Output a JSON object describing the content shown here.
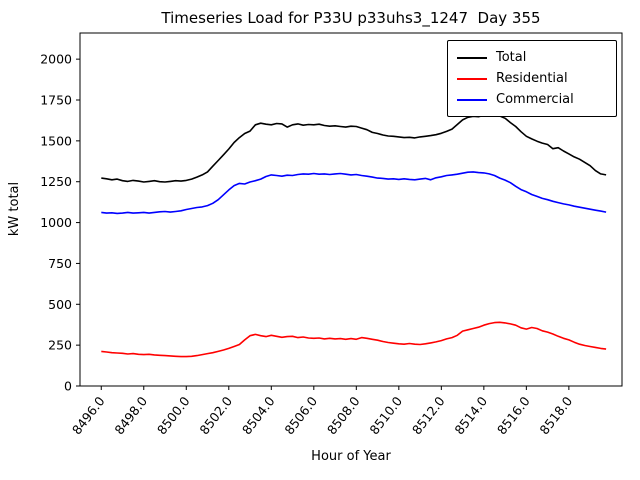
{
  "chart_data": {
    "type": "line",
    "title": "Timeseries Load for P33U p33uhs3_1247  Day 355",
    "xlabel": "Hour of Year",
    "ylabel": "kW total",
    "x_start": 8496.0,
    "x_step": 0.25,
    "xlim": [
      8495.0,
      8520.5
    ],
    "ylim": [
      0,
      2160
    ],
    "grid": false,
    "legend_position": "upper right",
    "xticks": [
      8496,
      8498,
      8500,
      8502,
      8504,
      8506,
      8508,
      8510,
      8512,
      8514,
      8516,
      8518
    ],
    "xtick_labels": [
      "8496.0",
      "8498.0",
      "8500.0",
      "8502.0",
      "8504.0",
      "8506.0",
      "8508.0",
      "8510.0",
      "8512.0",
      "8514.0",
      "8516.0",
      "8518.0"
    ],
    "yticks": [
      0,
      250,
      500,
      750,
      1000,
      1250,
      1500,
      1750,
      2000
    ],
    "ytick_labels": [
      "0",
      "250",
      "500",
      "750",
      "1000",
      "1250",
      "1500",
      "1750",
      "2000"
    ],
    "series": [
      {
        "name": "Total",
        "color": "#000000",
        "values": [
          1272,
          1268,
          1262,
          1266,
          1256,
          1252,
          1258,
          1254,
          1248,
          1252,
          1256,
          1250,
          1248,
          1252,
          1256,
          1254,
          1258,
          1266,
          1278,
          1292,
          1310,
          1345,
          1380,
          1415,
          1450,
          1490,
          1520,
          1545,
          1560,
          1598,
          1608,
          1602,
          1598,
          1606,
          1604,
          1584,
          1598,
          1604,
          1596,
          1600,
          1598,
          1602,
          1594,
          1590,
          1592,
          1588,
          1584,
          1590,
          1588,
          1578,
          1568,
          1552,
          1545,
          1536,
          1530,
          1528,
          1524,
          1520,
          1522,
          1518,
          1524,
          1528,
          1532,
          1538,
          1546,
          1558,
          1572,
          1600,
          1628,
          1644,
          1650,
          1648,
          1656,
          1670,
          1664,
          1652,
          1638,
          1612,
          1588,
          1556,
          1528,
          1512,
          1498,
          1486,
          1478,
          1452,
          1458,
          1438,
          1420,
          1402,
          1388,
          1368,
          1348,
          1318,
          1298,
          1292
        ]
      },
      {
        "name": "Residential",
        "color": "#ff0000",
        "values": [
          212,
          208,
          204,
          202,
          200,
          196,
          198,
          194,
          192,
          194,
          190,
          188,
          186,
          184,
          182,
          180,
          180,
          182,
          186,
          192,
          198,
          204,
          212,
          220,
          230,
          242,
          254,
          282,
          308,
          316,
          308,
          302,
          310,
          304,
          298,
          302,
          304,
          296,
          300,
          294,
          292,
          294,
          288,
          292,
          288,
          290,
          286,
          290,
          286,
          296,
          292,
          286,
          280,
          272,
          266,
          262,
          258,
          256,
          260,
          256,
          254,
          258,
          264,
          270,
          278,
          288,
          296,
          310,
          336,
          344,
          352,
          360,
          372,
          382,
          388,
          390,
          386,
          380,
          372,
          356,
          348,
          358,
          352,
          338,
          330,
          318,
          304,
          292,
          282,
          268,
          256,
          248,
          242,
          236,
          230,
          226
        ]
      },
      {
        "name": "Commercial",
        "color": "#0000ff",
        "values": [
          1062,
          1058,
          1060,
          1056,
          1058,
          1062,
          1058,
          1060,
          1062,
          1058,
          1062,
          1066,
          1068,
          1064,
          1068,
          1072,
          1080,
          1086,
          1092,
          1096,
          1104,
          1118,
          1140,
          1170,
          1200,
          1226,
          1240,
          1236,
          1248,
          1256,
          1266,
          1282,
          1292,
          1288,
          1284,
          1290,
          1288,
          1294,
          1298,
          1296,
          1300,
          1296,
          1298,
          1294,
          1298,
          1300,
          1296,
          1292,
          1294,
          1288,
          1284,
          1278,
          1272,
          1270,
          1266,
          1268,
          1264,
          1268,
          1264,
          1262,
          1266,
          1270,
          1262,
          1274,
          1280,
          1288,
          1292,
          1296,
          1302,
          1308,
          1310,
          1306,
          1304,
          1298,
          1288,
          1272,
          1260,
          1244,
          1222,
          1202,
          1188,
          1172,
          1160,
          1148,
          1140,
          1130,
          1122,
          1114,
          1108,
          1100,
          1094,
          1088,
          1082,
          1076,
          1070,
          1064
        ]
      }
    ]
  }
}
